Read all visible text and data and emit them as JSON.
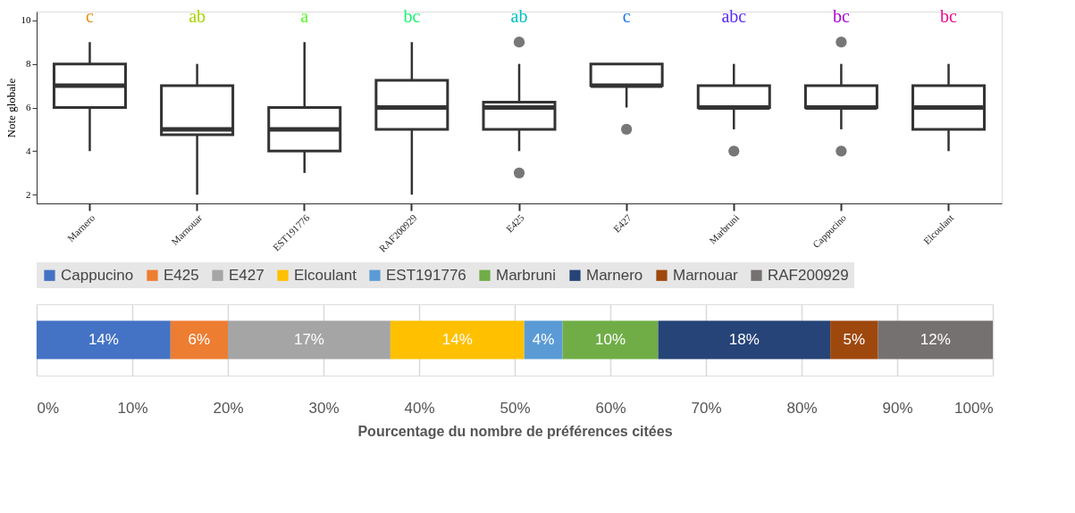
{
  "chart_data": [
    {
      "type": "box",
      "ylabel": "Note globale",
      "categories": [
        "Marnero",
        "Marnouar",
        "EST191776",
        "RAF200929",
        "E425",
        "E427",
        "Marbruni",
        "Cappucino",
        "Elcoulant"
      ],
      "boxes": [
        {
          "low": 4,
          "q1": 6,
          "median": 7,
          "q3": 8,
          "high": 9
        },
        {
          "low": 2,
          "q1": 4.75,
          "median": 5,
          "q3": 7,
          "high": 8
        },
        {
          "low": 3,
          "q1": 4,
          "median": 5,
          "q3": 6,
          "high": 9
        },
        {
          "low": 2,
          "q1": 5,
          "median": 6,
          "q3": 7.25,
          "high": 9
        },
        {
          "low": 4,
          "q1": 5,
          "median": 6,
          "q3": 6.25,
          "high": 8,
          "outliers": [
            9,
            3
          ]
        },
        {
          "low": 6,
          "q1": 7,
          "median": 7,
          "q3": 8,
          "high": 8,
          "outliers": [
            5
          ]
        },
        {
          "low": 5,
          "q1": 6,
          "median": 6,
          "q3": 7,
          "high": 8,
          "outliers": [
            4
          ]
        },
        {
          "low": 5,
          "q1": 6,
          "median": 6,
          "q3": 7,
          "high": 8,
          "outliers": [
            9,
            4
          ]
        },
        {
          "low": 4,
          "q1": 5,
          "median": 6,
          "q3": 7,
          "high": 8
        }
      ],
      "ylim": [
        1.6,
        10.4
      ],
      "yticks": [
        2,
        4,
        6,
        8,
        10
      ],
      "grid": false,
      "annotations": [
        "c",
        "ab",
        "a",
        "bc",
        "ab",
        "c",
        "abc",
        "bc",
        "bc"
      ]
    },
    {
      "type": "bar",
      "orientation": "horizontal",
      "stacked": true,
      "categories": [
        null
      ],
      "xlabel": "Pourcentage du nombre de préférences citées",
      "legend": "top",
      "grid": "x",
      "xlim": [
        0,
        100
      ],
      "xticks": [
        {
          "value": 0,
          "label": "0%"
        },
        {
          "value": 10,
          "label": "10%"
        },
        {
          "value": 20,
          "label": "20%"
        },
        {
          "value": 30,
          "label": "30%"
        },
        {
          "value": 40,
          "label": "40%"
        },
        {
          "value": 50,
          "label": "50%"
        },
        {
          "value": 60,
          "label": "60%"
        },
        {
          "value": 70,
          "label": "70%"
        },
        {
          "value": 80,
          "label": "80%"
        },
        {
          "value": 90,
          "label": "90%"
        },
        {
          "value": 100,
          "label": "100%"
        }
      ],
      "series": [
        {
          "name": "Cappucino",
          "color": "#4472c4",
          "values": [
            14
          ],
          "value_labels": [
            "14%"
          ]
        },
        {
          "name": "E425",
          "color": "#ed7d31",
          "values": [
            6
          ],
          "value_labels": [
            "6%"
          ]
        },
        {
          "name": "E427",
          "color": "#a5a5a5",
          "values": [
            17
          ],
          "value_labels": [
            "17%"
          ]
        },
        {
          "name": "Elcoulant",
          "color": "#ffc000",
          "values": [
            14
          ],
          "value_labels": [
            "14%"
          ]
        },
        {
          "name": "EST191776",
          "color": "#5b9bd5",
          "values": [
            4
          ],
          "value_labels": [
            "4%"
          ]
        },
        {
          "name": "Marbruni",
          "color": "#70ad47",
          "values": [
            10
          ],
          "value_labels": [
            "10%"
          ]
        },
        {
          "name": "Marnero",
          "color": "#264478",
          "values": [
            18
          ],
          "value_labels": [
            "18%"
          ]
        },
        {
          "name": "Marnouar",
          "color": "#9e480e",
          "values": [
            5
          ],
          "value_labels": [
            "5%"
          ]
        },
        {
          "name": "RAF200929",
          "color": "#767171",
          "values": [
            12
          ],
          "value_labels": [
            "12%"
          ]
        }
      ]
    }
  ]
}
